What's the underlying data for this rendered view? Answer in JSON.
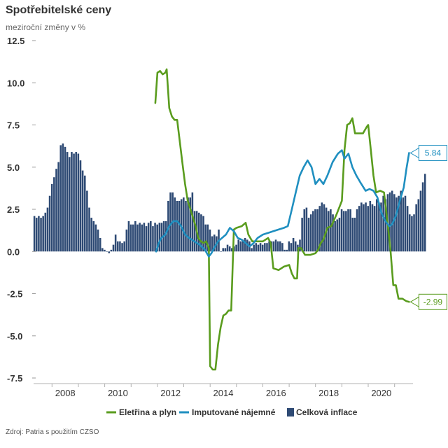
{
  "chart_data": {
    "type": "bar",
    "title": "Spotřebitelské ceny",
    "subtitle": "meziroční změny v %",
    "source": "Zdroj: Patria s použitím CZSO",
    "xlabel": "",
    "ylabel": "",
    "xlim": [
      2007.3,
      2021.7
    ],
    "ylim": [
      -7.5,
      12.5
    ],
    "y_ticks": [
      "12.5",
      "10.0",
      "7.5",
      "5.0",
      "2.5",
      "0.0",
      "-2.5",
      "-5.0",
      "-7.5"
    ],
    "x_ticks": [
      "2008",
      "2010",
      "2012",
      "2014",
      "2016",
      "2018",
      "2020"
    ],
    "grid": false,
    "legend": "bottom",
    "colors": {
      "bars": "#2e4a74",
      "electricity": "#5a9c1e",
      "rent": "#1f8fc0",
      "text": "#333333"
    },
    "series": [
      {
        "name": "Eletřina a plyn",
        "kind": "line",
        "color": "#5a9c1e",
        "points": [
          [
            2011.92,
            8.8
          ],
          [
            2012.0,
            10.6
          ],
          [
            2012.1,
            10.7
          ],
          [
            2012.2,
            10.5
          ],
          [
            2012.3,
            10.6
          ],
          [
            2012.35,
            10.8
          ],
          [
            2012.45,
            8.5
          ],
          [
            2012.55,
            8.0
          ],
          [
            2012.65,
            7.8
          ],
          [
            2012.75,
            7.8
          ],
          [
            2012.85,
            6.5
          ],
          [
            2012.95,
            5.2
          ],
          [
            2013.05,
            4.0
          ],
          [
            2013.15,
            3.0
          ],
          [
            2013.25,
            2.5
          ],
          [
            2013.35,
            2.0
          ],
          [
            2013.45,
            1.5
          ],
          [
            2013.55,
            0.8
          ],
          [
            2013.65,
            0.6
          ],
          [
            2013.75,
            0.5
          ],
          [
            2013.85,
            0.6
          ],
          [
            2013.95,
            0.2
          ],
          [
            2014.0,
            -6.8
          ],
          [
            2014.1,
            -7.0
          ],
          [
            2014.2,
            -7.0
          ],
          [
            2014.3,
            -5.5
          ],
          [
            2014.4,
            -4.5
          ],
          [
            2014.5,
            -3.8
          ],
          [
            2014.6,
            -3.7
          ],
          [
            2014.7,
            -3.5
          ],
          [
            2014.8,
            -3.5
          ],
          [
            2014.9,
            1.3
          ],
          [
            2015.0,
            1.4
          ],
          [
            2015.2,
            1.5
          ],
          [
            2015.35,
            1.7
          ],
          [
            2015.45,
            1.0
          ],
          [
            2015.6,
            0.6
          ],
          [
            2015.8,
            0.6
          ],
          [
            2016.0,
            0.6
          ],
          [
            2016.2,
            0.8
          ],
          [
            2016.3,
            0.5
          ],
          [
            2016.4,
            -1.0
          ],
          [
            2016.6,
            -1.1
          ],
          [
            2016.8,
            -0.9
          ],
          [
            2017.0,
            -0.8
          ],
          [
            2017.1,
            -1.3
          ],
          [
            2017.2,
            -1.6
          ],
          [
            2017.3,
            -1.6
          ],
          [
            2017.35,
            0.2
          ],
          [
            2017.45,
            0.2
          ],
          [
            2017.6,
            -0.2
          ],
          [
            2017.8,
            -0.2
          ],
          [
            2018.0,
            -0.1
          ],
          [
            2018.1,
            0.1
          ],
          [
            2018.2,
            0.5
          ],
          [
            2018.3,
            0.7
          ],
          [
            2018.45,
            1.4
          ],
          [
            2018.6,
            1.5
          ],
          [
            2018.8,
            2.2
          ],
          [
            2019.0,
            3.0
          ],
          [
            2019.1,
            6.0
          ],
          [
            2019.2,
            7.5
          ],
          [
            2019.3,
            7.6
          ],
          [
            2019.4,
            7.9
          ],
          [
            2019.5,
            7.0
          ],
          [
            2019.65,
            7.0
          ],
          [
            2019.8,
            7.0
          ],
          [
            2019.95,
            7.4
          ],
          [
            2020.0,
            7.5
          ],
          [
            2020.1,
            6.0
          ],
          [
            2020.2,
            4.5
          ],
          [
            2020.3,
            3.5
          ],
          [
            2020.45,
            3.6
          ],
          [
            2020.6,
            3.5
          ],
          [
            2020.75,
            1.5
          ],
          [
            2020.85,
            0.0
          ],
          [
            2020.95,
            -2.0
          ],
          [
            2021.05,
            -2.0
          ],
          [
            2021.15,
            -2.8
          ],
          [
            2021.3,
            -2.8
          ],
          [
            2021.45,
            -2.95
          ],
          [
            2021.55,
            -2.99
          ]
        ],
        "last_label": "-2.99"
      },
      {
        "name": "Imputované nájemné",
        "kind": "line",
        "color": "#1f8fc0",
        "points": [
          [
            2011.95,
            0.0
          ],
          [
            2012.05,
            0.5
          ],
          [
            2012.15,
            0.8
          ],
          [
            2012.3,
            1.0
          ],
          [
            2012.45,
            1.5
          ],
          [
            2012.6,
            1.8
          ],
          [
            2012.75,
            1.8
          ],
          [
            2012.9,
            1.5
          ],
          [
            2013.05,
            1.0
          ],
          [
            2013.2,
            0.8
          ],
          [
            2013.4,
            0.6
          ],
          [
            2013.6,
            0.4
          ],
          [
            2013.8,
            0.1
          ],
          [
            2013.95,
            -0.3
          ],
          [
            2014.05,
            -0.1
          ],
          [
            2014.15,
            0.2
          ],
          [
            2014.3,
            0.6
          ],
          [
            2014.45,
            0.8
          ],
          [
            2014.6,
            1.0
          ],
          [
            2014.75,
            1.4
          ],
          [
            2014.9,
            1.2
          ],
          [
            2015.05,
            0.8
          ],
          [
            2015.2,
            0.7
          ],
          [
            2015.35,
            0.5
          ],
          [
            2015.5,
            0.3
          ],
          [
            2015.65,
            0.5
          ],
          [
            2015.8,
            0.8
          ],
          [
            2016.0,
            1.0
          ],
          [
            2016.2,
            1.1
          ],
          [
            2016.4,
            1.2
          ],
          [
            2016.6,
            1.3
          ],
          [
            2016.8,
            1.4
          ],
          [
            2016.95,
            1.5
          ],
          [
            2017.1,
            2.5
          ],
          [
            2017.25,
            3.5
          ],
          [
            2017.4,
            4.5
          ],
          [
            2017.55,
            5.0
          ],
          [
            2017.7,
            5.4
          ],
          [
            2017.85,
            5.0
          ],
          [
            2018.0,
            4.0
          ],
          [
            2018.15,
            4.3
          ],
          [
            2018.3,
            4.0
          ],
          [
            2018.45,
            4.5
          ],
          [
            2018.65,
            5.3
          ],
          [
            2018.85,
            5.8
          ],
          [
            2019.0,
            6.0
          ],
          [
            2019.1,
            5.5
          ],
          [
            2019.25,
            5.8
          ],
          [
            2019.4,
            5.0
          ],
          [
            2019.55,
            4.5
          ],
          [
            2019.7,
            4.1
          ],
          [
            2019.9,
            3.6
          ],
          [
            2020.05,
            3.7
          ],
          [
            2020.2,
            3.6
          ],
          [
            2020.35,
            3.2
          ],
          [
            2020.5,
            2.3
          ],
          [
            2020.65,
            1.8
          ],
          [
            2020.8,
            1.5
          ],
          [
            2020.9,
            1.6
          ],
          [
            2021.05,
            2.1
          ],
          [
            2021.2,
            3.0
          ],
          [
            2021.35,
            3.8
          ],
          [
            2021.45,
            4.9
          ],
          [
            2021.55,
            5.84
          ]
        ],
        "last_label": "5.84"
      },
      {
        "name": "Celková inflace",
        "kind": "bar",
        "color": "#2e4a74",
        "start": 2007.33,
        "step": 0.0833,
        "values": [
          2.1,
          2.0,
          2.1,
          2.0,
          2.1,
          2.3,
          2.6,
          3.3,
          4.0,
          4.4,
          4.9,
          5.3,
          6.3,
          6.4,
          6.2,
          5.9,
          5.6,
          5.9,
          5.8,
          5.9,
          5.8,
          5.4,
          4.8,
          4.5,
          3.6,
          2.6,
          2.0,
          1.8,
          1.6,
          1.3,
          0.8,
          0.2,
          0.1,
          0.0,
          -0.1,
          0.1,
          0.4,
          1.0,
          0.6,
          0.6,
          0.5,
          0.6,
          1.3,
          1.8,
          1.6,
          1.6,
          1.8,
          1.6,
          1.7,
          1.6,
          1.7,
          1.5,
          1.7,
          1.8,
          1.5,
          1.7,
          1.6,
          1.7,
          1.7,
          1.8,
          1.8,
          3.0,
          3.5,
          3.5,
          3.2,
          3.0,
          3.0,
          3.1,
          3.2,
          3.0,
          3.2,
          3.2,
          3.5,
          2.4,
          2.4,
          2.3,
          2.2,
          2.1,
          1.6,
          1.6,
          1.3,
          0.9,
          1.0,
          0.9,
          1.3,
          0.0,
          0.2,
          0.2,
          0.4,
          0.3,
          0.2,
          0.3,
          0.4,
          0.7,
          0.6,
          0.7,
          0.8,
          0.7,
          0.6,
          0.2,
          0.4,
          0.5,
          0.4,
          0.5,
          0.4,
          0.5,
          0.5,
          0.6,
          0.6,
          0.6,
          0.7,
          0.6,
          0.6,
          0.5,
          0.1,
          0.1,
          0.6,
          0.5,
          0.8,
          0.6,
          0.4,
          0.7,
          2.0,
          2.5,
          2.6,
          2.0,
          2.2,
          2.4,
          2.5,
          2.5,
          2.7,
          2.9,
          2.8,
          2.6,
          2.4,
          2.5,
          2.2,
          1.8,
          1.9,
          2.0,
          2.5,
          2.4,
          2.4,
          2.5,
          2.5,
          2.0,
          2.0,
          2.5,
          2.7,
          2.9,
          2.8,
          2.9,
          2.7,
          3.0,
          2.8,
          2.7,
          3.1,
          2.9,
          2.9,
          3.3,
          3.1,
          3.4,
          3.5,
          3.6,
          3.4,
          3.2,
          3.3,
          3.6,
          3.2,
          3.3,
          2.7,
          2.2,
          2.1,
          2.2,
          2.8,
          3.1,
          3.6,
          4.1,
          4.6
        ]
      }
    ],
    "callouts": [
      {
        "series": "Imputované nájemné",
        "text": "5.84"
      },
      {
        "series": "Eletřina a plyn",
        "text": "-2.99"
      }
    ]
  }
}
